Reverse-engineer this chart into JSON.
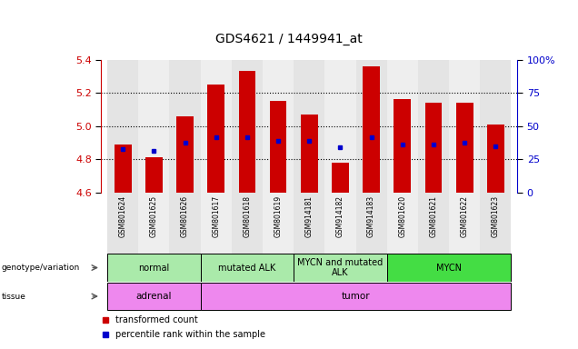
{
  "title": "GDS4621 / 1449941_at",
  "samples": [
    "GSM801624",
    "GSM801625",
    "GSM801626",
    "GSM801617",
    "GSM801618",
    "GSM801619",
    "GSM914181",
    "GSM914182",
    "GSM914183",
    "GSM801620",
    "GSM801621",
    "GSM801622",
    "GSM801623"
  ],
  "bar_tops": [
    4.89,
    4.81,
    5.06,
    5.25,
    5.33,
    5.15,
    5.07,
    4.78,
    5.36,
    5.16,
    5.14,
    5.14,
    5.01
  ],
  "bar_base": 4.6,
  "ylim_left": [
    4.6,
    5.4
  ],
  "ylim_right": [
    0,
    100
  ],
  "yticks_left": [
    4.6,
    4.8,
    5.0,
    5.2,
    5.4
  ],
  "yticks_right": [
    0,
    25,
    50,
    75,
    100
  ],
  "ytick_labels_right": [
    "0",
    "25",
    "50",
    "75",
    "100%"
  ],
  "percentile_values": [
    4.86,
    4.85,
    4.9,
    4.93,
    4.93,
    4.91,
    4.91,
    4.87,
    4.93,
    4.89,
    4.89,
    4.9,
    4.88
  ],
  "bar_color": "#cc0000",
  "dot_color": "#0000cc",
  "bar_width": 0.55,
  "geno_groups": [
    {
      "label": "normal",
      "start": 0,
      "end": 2,
      "color": "#aaeaaa"
    },
    {
      "label": "mutated ALK",
      "start": 3,
      "end": 5,
      "color": "#aaeaaa"
    },
    {
      "label": "MYCN and mutated\nALK",
      "start": 6,
      "end": 8,
      "color": "#aaeaaa"
    },
    {
      "label": "MYCN",
      "start": 9,
      "end": 12,
      "color": "#44dd44"
    }
  ],
  "tissue_groups": [
    {
      "label": "adrenal",
      "start": 0,
      "end": 2,
      "color": "#ee88ee"
    },
    {
      "label": "tumor",
      "start": 3,
      "end": 12,
      "color": "#ee88ee"
    }
  ],
  "background_color": "#ffffff",
  "tick_color_left": "#cc0000",
  "tick_color_right": "#0000cc",
  "grid_yticks": [
    4.8,
    5.0,
    5.2
  ],
  "legend_red_label": "transformed count",
  "legend_blue_label": "percentile rank within the sample",
  "geno_row_label": "genotype/variation",
  "tissue_row_label": "tissue"
}
